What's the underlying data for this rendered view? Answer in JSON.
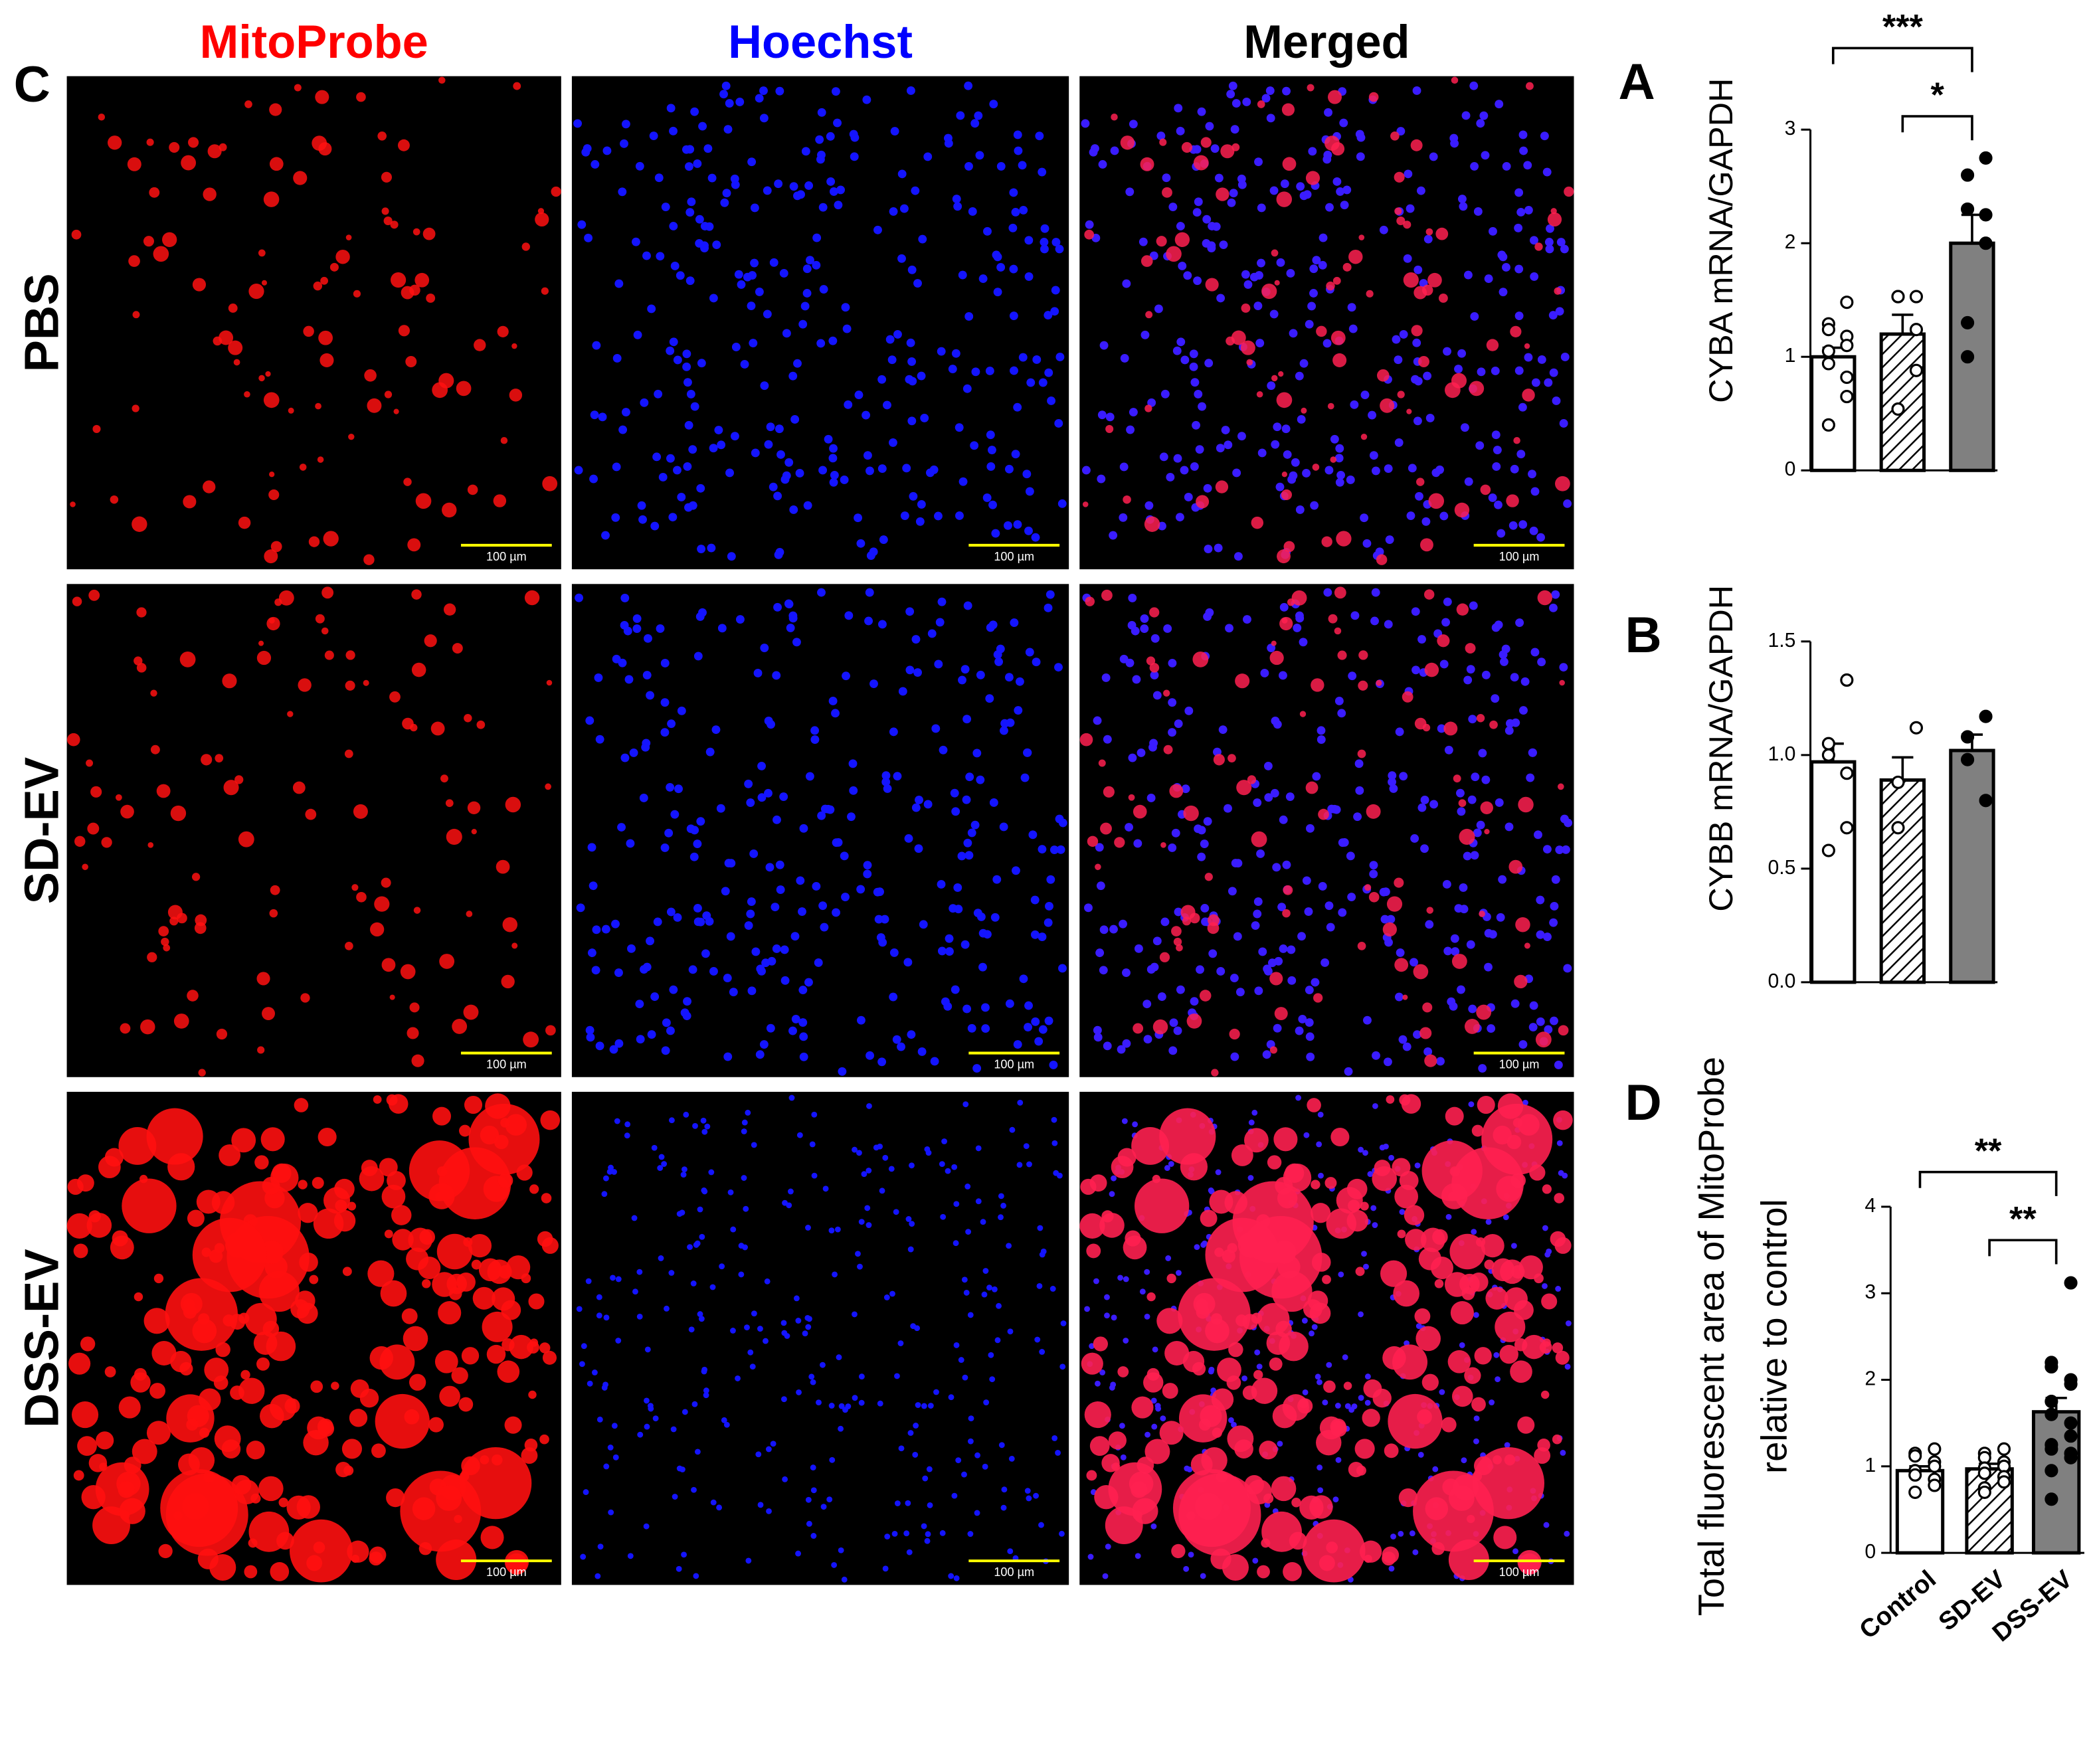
{
  "figure_c": {
    "panel_label": "C",
    "columns": [
      "MitoProbe",
      "Hoechst",
      "Merged"
    ],
    "column_colors": [
      "#ff0000",
      "#0000ff",
      "#000000"
    ],
    "rows": [
      "PBS",
      "SD-EV",
      "DSS-EV"
    ],
    "scale_bar_label": "100 µm"
  },
  "chart_data": [
    {
      "type": "bar",
      "panel_label": "A",
      "y_label": "CYBA mRNA/GAPDH",
      "categories": [
        null,
        null,
        null
      ],
      "values": [
        1.0,
        1.2,
        2.0
      ],
      "errors": [
        0.08,
        0.17,
        0.25
      ],
      "points": [
        [
          1.48,
          1.29,
          1.24,
          1.18,
          1.1,
          1.05,
          0.94,
          0.82,
          0.65,
          0.4
        ],
        [
          1.53,
          1.53,
          1.53,
          1.24,
          0.88,
          0.54
        ],
        [
          2.75,
          2.6,
          2.3,
          2.25,
          2.0,
          1.3,
          1.0
        ]
      ],
      "bar_colors": [
        "#ffffff",
        "#ffffff",
        "#808080"
      ],
      "hatched": [
        false,
        true,
        false
      ],
      "point_filled": [
        false,
        false,
        true
      ],
      "ylim": [
        0,
        3
      ],
      "yticks": [
        0,
        1,
        2,
        3
      ],
      "annotations": [
        {
          "text": "***",
          "between": [
            0,
            2
          ]
        },
        {
          "text": "*",
          "between": [
            1,
            2
          ]
        }
      ]
    },
    {
      "type": "bar",
      "panel_label": "B",
      "y_label": "CYBB mRNA/GAPDH",
      "categories": [
        null,
        null,
        null
      ],
      "values": [
        0.97,
        0.89,
        1.02
      ],
      "errors": [
        0.08,
        0.1,
        0.07
      ],
      "points": [
        [
          1.33,
          1.05,
          1.0,
          0.92,
          0.68,
          0.58
        ],
        [
          1.12,
          0.88,
          0.68
        ],
        [
          1.17,
          1.08,
          0.98,
          0.8
        ]
      ],
      "bar_colors": [
        "#ffffff",
        "#ffffff",
        "#808080"
      ],
      "hatched": [
        false,
        true,
        false
      ],
      "point_filled": [
        false,
        false,
        true
      ],
      "ylim": [
        0,
        1.5
      ],
      "yticks": [
        {
          "value": 0,
          "label": "0.0"
        },
        0.5,
        {
          "value": 1,
          "label": "1.0"
        },
        1.5
      ],
      "annotations": []
    },
    {
      "type": "bar",
      "panel_label": "D",
      "y_label": [
        "Total fluorescent area of MitoProbe",
        "relative to control"
      ],
      "categories": [
        "Control",
        "SD-EV",
        "DSS-EV"
      ],
      "values": [
        0.95,
        0.97,
        1.63
      ],
      "errors": [
        0.05,
        0.06,
        0.16
      ],
      "points": [
        [
          1.2,
          1.15,
          1.12,
          1.05,
          1.0,
          0.95,
          0.9,
          0.85,
          0.78,
          0.7
        ],
        [
          1.2,
          1.15,
          1.1,
          1.05,
          1.0,
          0.98,
          0.92,
          0.88,
          0.82,
          0.75,
          0.7
        ],
        [
          3.12,
          2.2,
          2.15,
          2.0,
          1.95,
          1.75,
          1.6,
          1.5,
          1.35,
          1.25,
          1.2,
          1.15,
          1.1,
          0.95,
          0.62
        ]
      ],
      "bar_colors": [
        "#ffffff",
        "#ffffff",
        "#808080"
      ],
      "hatched": [
        false,
        true,
        false
      ],
      "point_filled": [
        false,
        false,
        true
      ],
      "ylim": [
        0,
        4
      ],
      "yticks": [
        0,
        1,
        2,
        3,
        4
      ],
      "annotations": [
        {
          "text": "**",
          "between": [
            0,
            2
          ]
        },
        {
          "text": "**",
          "between": [
            1,
            2
          ]
        }
      ]
    }
  ]
}
